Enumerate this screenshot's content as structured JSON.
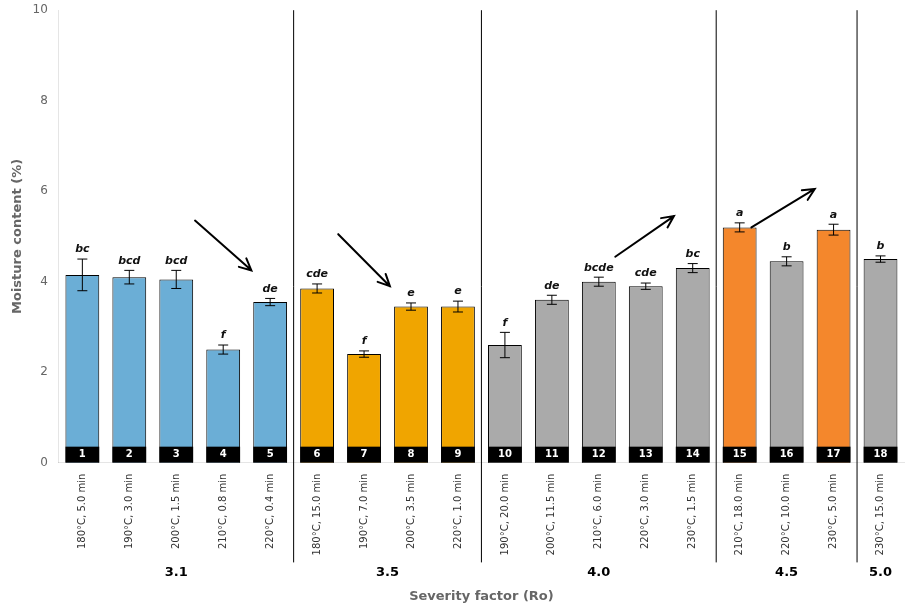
{
  "chart_data": {
    "type": "bar",
    "xlabel": "Severity factor (Ro)",
    "ylabel": "Moisture content (%)",
    "categories": [
      "180°C, 5.0 min",
      "190°C, 3.0 min",
      "200°C, 1.5 min",
      "210°C, 0.8 min",
      "220°C, 0.4 min",
      "180°C, 15.0 min",
      "190°C, 7.0 min",
      "200°C, 3.5 min",
      "220°C, 1.0 min",
      "190°C, 20.0 min",
      "200°C, 11.5 min",
      "210°C, 6.0 min",
      "220°C, 3.0 min",
      "230°C, 1.5 min",
      "210°C, 18.0 min",
      "220°C, 10.0 min",
      "230°C, 5.0 min",
      "230°C, 15.0 min"
    ],
    "values": [
      4.15,
      4.1,
      4.05,
      2.5,
      3.55,
      3.85,
      2.4,
      3.45,
      3.45,
      2.6,
      3.6,
      4.0,
      3.9,
      4.3,
      5.2,
      4.45,
      5.15,
      4.5
    ],
    "errors": [
      0.35,
      0.15,
      0.2,
      0.1,
      0.08,
      0.1,
      0.07,
      0.08,
      0.12,
      0.28,
      0.1,
      0.1,
      0.07,
      0.1,
      0.1,
      0.1,
      0.12,
      0.07
    ],
    "colors": [
      "#6baed6",
      "#6baed6",
      "#6baed6",
      "#6baed6",
      "#6baed6",
      "#f0a500",
      "#f0a500",
      "#f0a500",
      "#f0a500",
      "#aaaaaa",
      "#aaaaaa",
      "#aaaaaa",
      "#aaaaaa",
      "#aaaaaa",
      "#f4872c",
      "#aaaaaa",
      "#f4872c",
      "#aaaaaa"
    ],
    "bar_labels": [
      "bc",
      "bcd",
      "bcd",
      "f",
      "de",
      "cde",
      "f",
      "e",
      "e",
      "f",
      "de",
      "bcde",
      "cde",
      "bc",
      "a",
      "b",
      "a",
      "b"
    ],
    "ids": [
      1,
      2,
      3,
      4,
      5,
      6,
      7,
      8,
      9,
      10,
      11,
      12,
      13,
      14,
      15,
      16,
      17,
      18
    ],
    "groups": [
      {
        "label": "3.1",
        "bar_ids": [
          1,
          2,
          3,
          4,
          5
        ]
      },
      {
        "label": "3.5",
        "bar_ids": [
          6,
          7,
          8,
          9
        ]
      },
      {
        "label": "4.0",
        "bar_ids": [
          10,
          11,
          12,
          13,
          14
        ]
      },
      {
        "label": "4.5",
        "bar_ids": [
          15,
          16,
          17
        ]
      },
      {
        "label": "5.0",
        "bar_ids": [
          18
        ]
      }
    ],
    "arrows": [
      {
        "tail": [
          3.4,
          5.35
        ],
        "head": [
          4.6,
          4.25
        ]
      },
      {
        "tail": [
          6.45,
          5.05
        ],
        "head": [
          7.55,
          3.9
        ]
      },
      {
        "tail": [
          12.35,
          4.55
        ],
        "head": [
          13.6,
          5.45
        ]
      },
      {
        "tail": [
          15.25,
          5.2
        ],
        "head": [
          16.6,
          6.05
        ]
      }
    ],
    "ylim": [
      0,
      10
    ],
    "yticks": [
      0,
      2,
      4,
      6,
      8,
      10
    ],
    "grid": false
  }
}
